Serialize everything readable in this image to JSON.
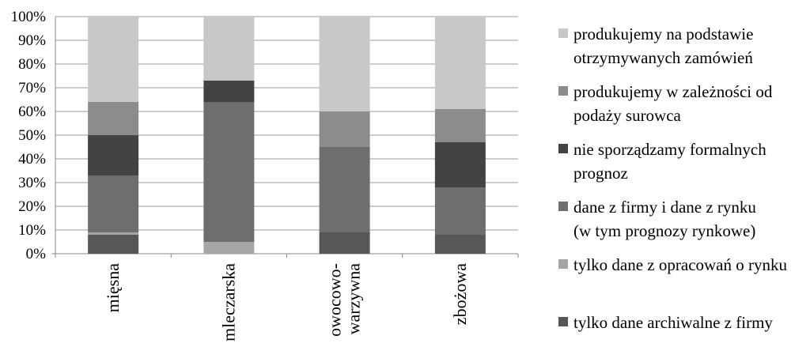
{
  "chart_data": {
    "type": "bar",
    "stacked": true,
    "stack_order": "bottom-to-top",
    "categories": [
      "mięsna",
      "mleczarska",
      "owocowo-\nwarzywna",
      "zbożowa"
    ],
    "series": [
      {
        "name": "tylko dane archiwalne z firmy",
        "color": "#575757",
        "values": [
          8,
          0,
          9,
          8
        ]
      },
      {
        "name": "tylko dane z opracowań o rynku",
        "color": "#a6a6a6",
        "values": [
          1,
          5,
          0,
          0
        ]
      },
      {
        "name": "dane z firmy i dane z rynku\n(w tym prognozy rynkowe)",
        "color": "#6e6e6e",
        "values": [
          24,
          59,
          36,
          20
        ]
      },
      {
        "name": "nie sporządzamy formalnych\nprognoz",
        "color": "#434343",
        "values": [
          17,
          9,
          0,
          19
        ]
      },
      {
        "name": "produkujemy w zależności od\npodaży surowca",
        "color": "#8c8c8c",
        "values": [
          14,
          0,
          15,
          14
        ]
      },
      {
        "name": "produkujemy na podstawie\notrzymywanych zamówień",
        "color": "#c8c8c8",
        "values": [
          36,
          27,
          40,
          39
        ]
      }
    ],
    "y_ticks": [
      "0%",
      "10%",
      "20%",
      "30%",
      "40%",
      "50%",
      "60%",
      "70%",
      "80%",
      "90%",
      "100%"
    ],
    "ylim": [
      0,
      100
    ],
    "grid": true,
    "legend_position": "right",
    "title": "",
    "xlabel": "",
    "ylabel": ""
  }
}
